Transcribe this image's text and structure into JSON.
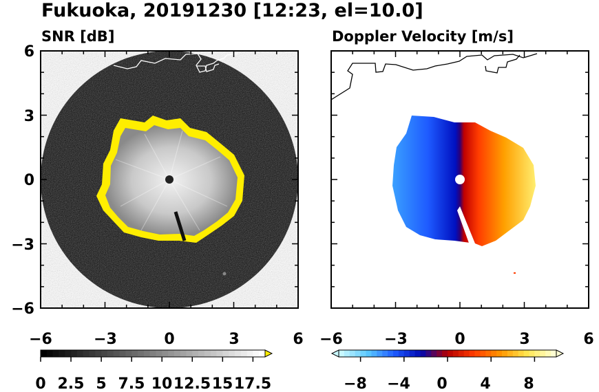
{
  "title": "Fukuoka, 20191230 [12:23, el=10.0]",
  "chart_data": [
    {
      "type": "heatmap",
      "title": "SNR [dB]",
      "xlim": [
        -6,
        6
      ],
      "ylim": [
        -6,
        6
      ],
      "x_ticks": [
        "−6",
        "−3",
        "0",
        "3",
        "6"
      ],
      "y_ticks": [
        "6",
        "3",
        "0",
        "−3",
        "−6"
      ],
      "colorbar": {
        "range": [
          0,
          18.5
        ],
        "extend": "max",
        "tick_values": [
          0,
          2.5,
          5,
          7.5,
          10,
          12.5,
          15,
          17.5
        ],
        "tick_labels": [
          "0",
          "2.5",
          "5",
          "7.5",
          "10",
          "12.5",
          "15",
          "17.5"
        ],
        "overflow_color": "#ffee00",
        "colors": [
          "#000000",
          "#ffffff"
        ]
      }
    },
    {
      "type": "heatmap",
      "title": "Doppler Velocity [m/s]",
      "xlim": [
        -6,
        6
      ],
      "ylim": [
        -6,
        6
      ],
      "x_ticks": [
        "−6",
        "−3",
        "0",
        "3",
        "6"
      ],
      "y_ticks": [
        "6",
        "3",
        "0",
        "−3",
        "−6"
      ],
      "colorbar": {
        "range": [
          -10,
          10
        ],
        "extend": "both",
        "tick_values": [
          -8,
          -4,
          0,
          4,
          8
        ],
        "tick_labels": [
          "−8",
          "−4",
          "0",
          "4",
          "8"
        ],
        "colors": [
          "#c8f8ff",
          "#5ac8ff",
          "#1e5aff",
          "#0008b0",
          "#b40000",
          "#ff3c00",
          "#ff9600",
          "#ffe650",
          "#ffffd2"
        ]
      }
    }
  ]
}
